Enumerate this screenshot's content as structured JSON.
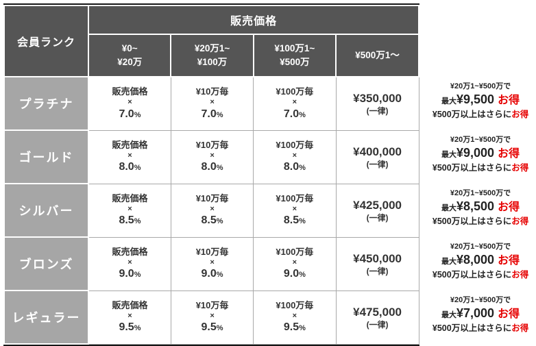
{
  "colors": {
    "header_bg": "#555555",
    "rank_bg": "#a6a6a6",
    "accent_red": "#e60000",
    "outer_border": "#161616",
    "cell_border": "#a8a8a8",
    "cell_text": "#333333"
  },
  "table": {
    "corner_header": "会員ランク",
    "price_header": "販売価格",
    "range_headers": [
      {
        "line1": "¥0~",
        "line2": "¥20万"
      },
      {
        "line1": "¥20万1~",
        "line2": "¥100万"
      },
      {
        "line1": "¥100万1~",
        "line2": "¥500万"
      },
      {
        "line1": "¥500万1～",
        "line2": ""
      }
    ]
  },
  "rows": [
    {
      "rank": "プラチナ",
      "base_label": "販売価格",
      "per10": "¥10万毎",
      "per100": "¥100万毎",
      "multiply": "×",
      "rate": "7.0",
      "percent": "%",
      "flat_amount": "¥350,000",
      "flat_note": "(一律)",
      "note_range": "¥20万1~¥500万で",
      "note_max_prefix": "最大",
      "note_max_amount": "¥9,500",
      "note_deal": "お得",
      "note_more": "¥500万以上はさらに",
      "note_more_deal": "お得"
    },
    {
      "rank": "ゴールド",
      "base_label": "販売価格",
      "per10": "¥10万毎",
      "per100": "¥100万毎",
      "multiply": "×",
      "rate": "8.0",
      "percent": "%",
      "flat_amount": "¥400,000",
      "flat_note": "(一律)",
      "note_range": "¥20万1~¥500万で",
      "note_max_prefix": "最大",
      "note_max_amount": "¥9,000",
      "note_deal": "お得",
      "note_more": "¥500万以上はさらに",
      "note_more_deal": "お得"
    },
    {
      "rank": "シルバー",
      "base_label": "販売価格",
      "per10": "¥10万毎",
      "per100": "¥100万毎",
      "multiply": "×",
      "rate": "8.5",
      "percent": "%",
      "flat_amount": "¥425,000",
      "flat_note": "(一律)",
      "note_range": "¥20万1~¥500万で",
      "note_max_prefix": "最大",
      "note_max_amount": "¥8,500",
      "note_deal": "お得",
      "note_more": "¥500万以上はさらに",
      "note_more_deal": "お得"
    },
    {
      "rank": "ブロンズ",
      "base_label": "販売価格",
      "per10": "¥10万毎",
      "per100": "¥100万毎",
      "multiply": "×",
      "rate": "9.0",
      "percent": "%",
      "flat_amount": "¥450,000",
      "flat_note": "(一律)",
      "note_range": "¥20万1~¥500万で",
      "note_max_prefix": "最大",
      "note_max_amount": "¥8,000",
      "note_deal": "お得",
      "note_more": "¥500万以上はさらに",
      "note_more_deal": "お得"
    },
    {
      "rank": "レギュラー",
      "base_label": "販売価格",
      "per10": "¥10万毎",
      "per100": "¥100万毎",
      "multiply": "×",
      "rate": "9.5",
      "percent": "%",
      "flat_amount": "¥475,000",
      "flat_note": "(一律)",
      "note_range": "¥20万1~¥500万で",
      "note_max_prefix": "最大",
      "note_max_amount": "¥7,000",
      "note_deal": "お得",
      "note_more": "¥500万以上はさらに",
      "note_more_deal": "お得"
    }
  ],
  "chart_data": {
    "type": "table",
    "title": "販売価格",
    "columns": [
      "会員ランク",
      "¥0~¥20万",
      "¥20万1~¥100万",
      "¥100万1~¥500万",
      "¥500万1～"
    ],
    "rows": [
      [
        "プラチナ",
        "販売価格 × 7.0%",
        "¥10万毎 × 7.0%",
        "¥100万毎 × 7.0%",
        "¥350,000 (一律)"
      ],
      [
        "ゴールド",
        "販売価格 × 8.0%",
        "¥10万毎 × 8.0%",
        "¥100万毎 × 8.0%",
        "¥400,000 (一律)"
      ],
      [
        "シルバー",
        "販売価格 × 8.5%",
        "¥10万毎 × 8.5%",
        "¥100万毎 × 8.5%",
        "¥425,000 (一律)"
      ],
      [
        "ブロンズ",
        "販売価格 × 9.0%",
        "¥10万毎 × 9.0%",
        "¥100万毎 × 9.0%",
        "¥450,000 (一律)"
      ],
      [
        "レギュラー",
        "販売価格 × 9.5%",
        "¥10万毎 × 9.5%",
        "¥100万毎 × 9.5%",
        "¥475,000 (一律)"
      ]
    ],
    "annotations": [
      "プラチナ: ¥20万1~¥500万で 最大¥9,500 お得 / ¥500万以上はさらにお得",
      "ゴールド: ¥20万1~¥500万で 最大¥9,000 お得 / ¥500万以上はさらにお得",
      "シルバー: ¥20万1~¥500万で 最大¥8,500 お得 / ¥500万以上はさらにお得",
      "ブロンズ: ¥20万1~¥500万で 最大¥8,000 お得 / ¥500万以上はさらにお得",
      "レギュラー: ¥20万1~¥500万で 最大¥7,000 お得 / ¥500万以上はさらにお得"
    ]
  }
}
